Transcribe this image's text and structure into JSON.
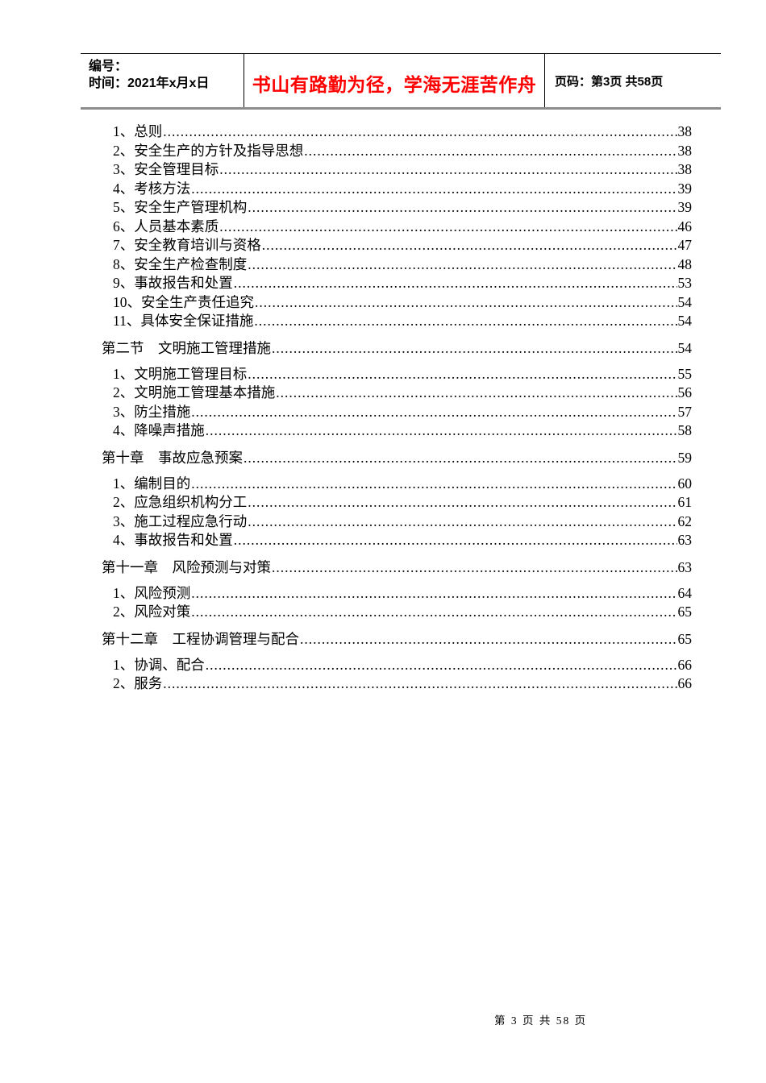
{
  "header": {
    "number_label": "编号：",
    "time_label": "时间：2021年x月x日",
    "motto": "书山有路勤为径，学海无涯苦作舟",
    "motto_color": "#ff0000",
    "page_label": "页码：第3页 共58页"
  },
  "toc": {
    "entries": [
      {
        "level": "item",
        "label": "1、总则",
        "page": "38"
      },
      {
        "level": "item",
        "label": "2、安全生产的方针及指导思想",
        "page": "38"
      },
      {
        "level": "item",
        "label": "3、安全管理目标",
        "page": "38"
      },
      {
        "level": "item",
        "label": "4、考核方法",
        "page": "39"
      },
      {
        "level": "item",
        "label": "5、安全生产管理机构",
        "page": "39"
      },
      {
        "level": "item",
        "label": "6、人员基本素质",
        "page": "46"
      },
      {
        "level": "item",
        "label": "7、安全教育培训与资格",
        "page": "47"
      },
      {
        "level": "item",
        "label": "8、安全生产检查制度",
        "page": "48"
      },
      {
        "level": "item",
        "label": "9、事故报告和处置",
        "page": "53"
      },
      {
        "level": "item",
        "label": "10、安全生产责任追究",
        "page": "54"
      },
      {
        "level": "item",
        "label": "11、具体安全保证措施",
        "page": "54"
      },
      {
        "level": "chapter",
        "label": "第二节　文明施工管理措施",
        "page": "54"
      },
      {
        "level": "item",
        "label": "1、文明施工管理目标",
        "page": "55"
      },
      {
        "level": "item",
        "label": "2、文明施工管理基本措施",
        "page": "56"
      },
      {
        "level": "item",
        "label": "3、防尘措施",
        "page": "57"
      },
      {
        "level": "item",
        "label": "4、降噪声措施",
        "page": "58"
      },
      {
        "level": "chapter",
        "label": "第十章　事故应急预案",
        "page": "59"
      },
      {
        "level": "item",
        "label": "1、编制目的",
        "page": "60"
      },
      {
        "level": "item",
        "label": "2、应急组织机构分工",
        "page": "61"
      },
      {
        "level": "item",
        "label": "3、施工过程应急行动",
        "page": "62"
      },
      {
        "level": "item",
        "label": "4、事故报告和处置",
        "page": "63"
      },
      {
        "level": "chapter",
        "label": "第十一章　风险预测与对策",
        "page": "63"
      },
      {
        "level": "item",
        "label": "1、风险预测",
        "page": "64"
      },
      {
        "level": "item",
        "label": "2、风险对策",
        "page": "65"
      },
      {
        "level": "chapter",
        "label": "第十二章　工程协调管理与配合",
        "page": "65"
      },
      {
        "level": "item",
        "label": "1、协调、配合",
        "page": "66"
      },
      {
        "level": "item",
        "label": "2、服务",
        "page": "66"
      }
    ]
  },
  "footer": {
    "page_indicator": "第 3 页 共 58 页"
  }
}
